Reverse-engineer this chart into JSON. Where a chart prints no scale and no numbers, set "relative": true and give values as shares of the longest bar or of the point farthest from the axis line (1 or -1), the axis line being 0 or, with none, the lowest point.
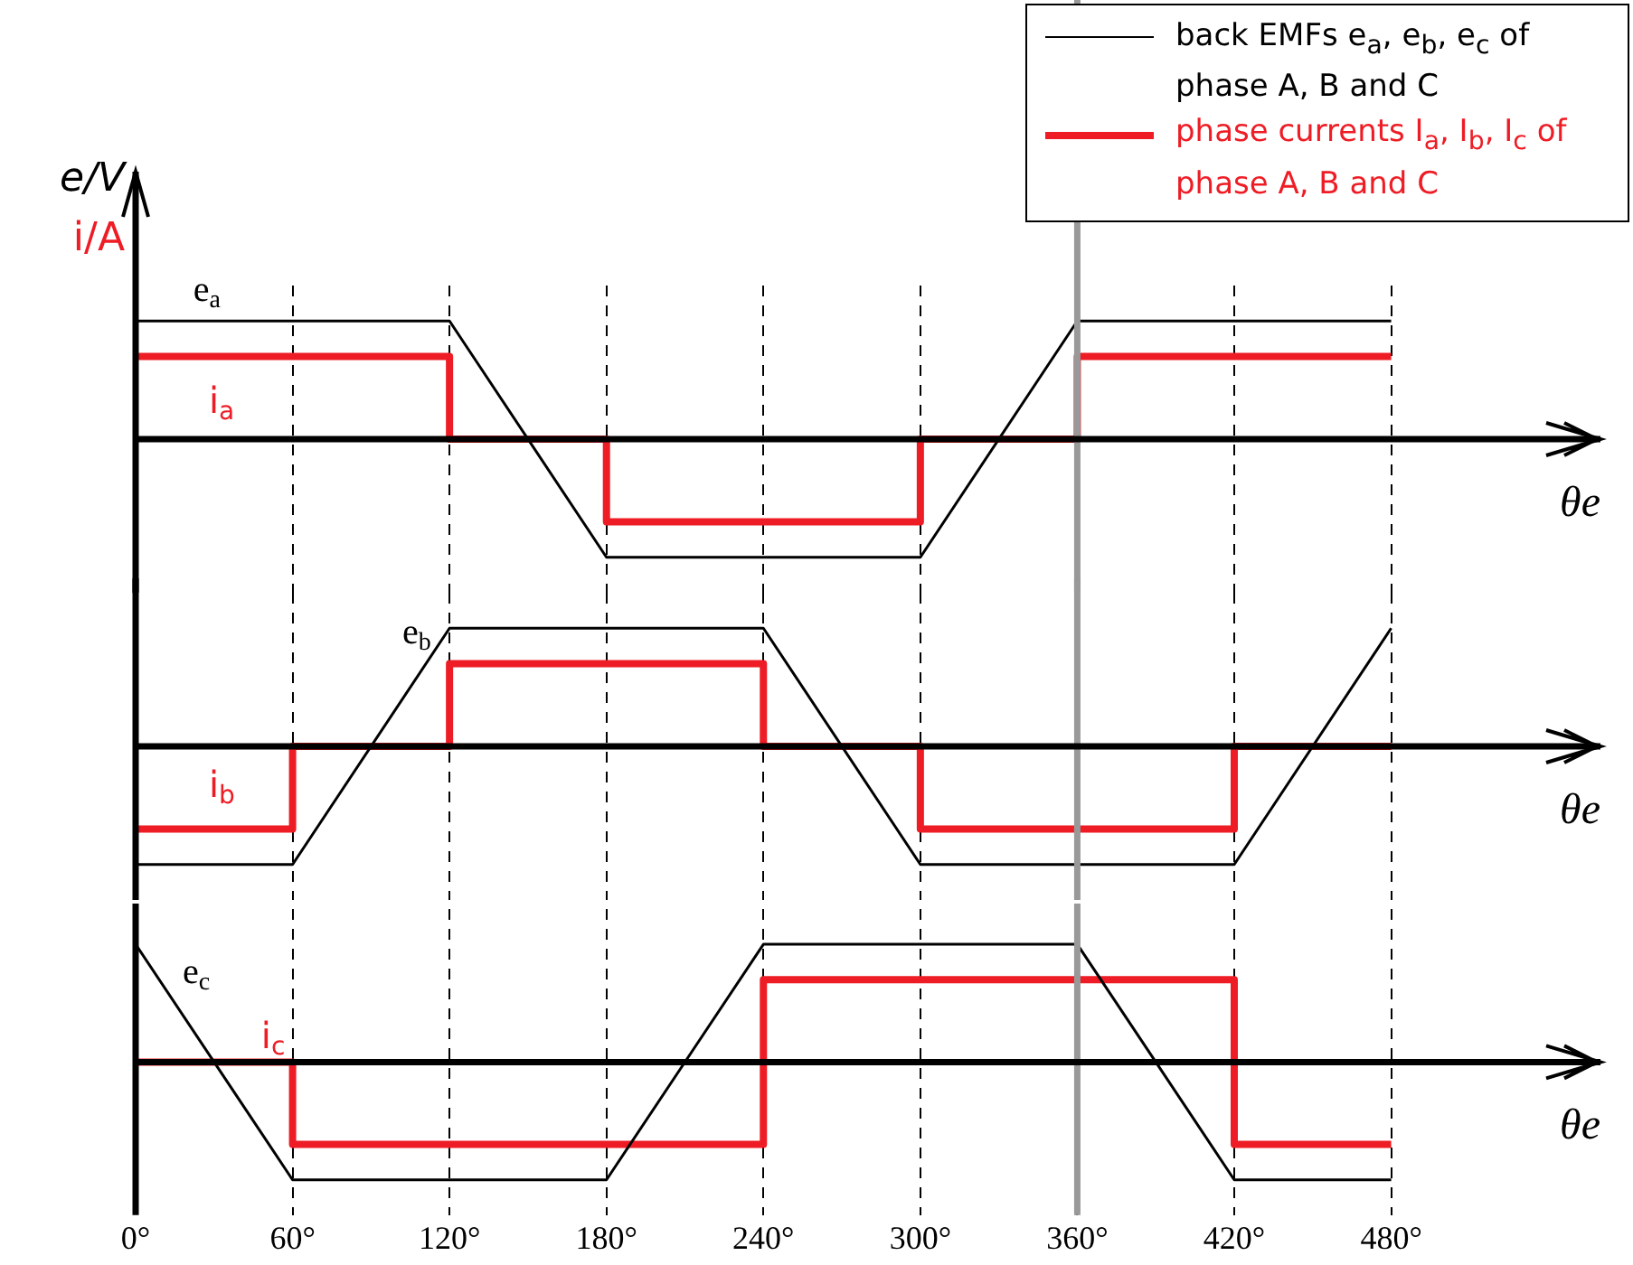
{
  "chart_data": [
    {
      "type": "line",
      "relative": true,
      "ylabel": "e/V",
      "xlabel": "θe",
      "grid": "x",
      "tick_labels": false,
      "line_style": "solid",
      "marker": "none",
      "xlim": [
        0,
        560
      ],
      "xticks": [
        {
          "value": 0,
          "label": null
        },
        {
          "value": 60,
          "label": null
        },
        {
          "value": 120,
          "label": null
        },
        {
          "value": 180,
          "label": null
        },
        {
          "value": 240,
          "label": null
        },
        {
          "value": 300,
          "label": null
        },
        {
          "value": 360,
          "label": null
        },
        {
          "value": 420,
          "label": null
        },
        {
          "value": 480,
          "label": null
        }
      ],
      "ref_lines": [
        {
          "axis": "x",
          "value": 360,
          "color": "#999999"
        }
      ],
      "annotations": [
        "i/A",
        "back EMFs e$_{a}$, e$_{b}$, e$_{c}$ of phase A, B and C",
        "phase currents I$_{a}$, I$_{b}$, I$_{c}$ of phase A, B and C"
      ],
      "series": [
        {
          "type": "line",
          "name": "e$_{a}$",
          "color": "#000000",
          "x": [
            0,
            120,
            180,
            300,
            360,
            480
          ],
          "values": [
            1,
            1,
            -1,
            -1,
            1,
            1
          ]
        },
        {
          "type": "step",
          "name": "i$_{a}$",
          "color": "#ee1c25",
          "x": [
            0,
            120,
            180,
            300,
            360,
            480
          ],
          "values": [
            0.7,
            0,
            -0.7,
            0,
            0.7,
            0.7
          ]
        }
      ]
    },
    {
      "type": "line",
      "relative": true,
      "xlabel": "θe",
      "grid": "x",
      "tick_labels": false,
      "line_style": "solid",
      "marker": "none",
      "xlim": [
        0,
        560
      ],
      "xticks": [
        {
          "value": 0,
          "label": null
        },
        {
          "value": 60,
          "label": null
        },
        {
          "value": 120,
          "label": null
        },
        {
          "value": 180,
          "label": null
        },
        {
          "value": 240,
          "label": null
        },
        {
          "value": 300,
          "label": null
        },
        {
          "value": 360,
          "label": null
        },
        {
          "value": 420,
          "label": null
        },
        {
          "value": 480,
          "label": null
        }
      ],
      "ref_lines": [
        {
          "axis": "x",
          "value": 360,
          "color": "#999999"
        }
      ],
      "series": [
        {
          "type": "line",
          "name": "e$_{b}$",
          "color": "#000000",
          "x": [
            0,
            60,
            120,
            240,
            300,
            420,
            480
          ],
          "values": [
            -1,
            -1,
            1,
            1,
            -1,
            -1,
            1
          ]
        },
        {
          "type": "step",
          "name": "i$_{b}$",
          "color": "#ee1c25",
          "x": [
            0,
            60,
            120,
            240,
            300,
            420,
            480
          ],
          "values": [
            -0.7,
            0,
            0.7,
            0,
            -0.7,
            0,
            0
          ]
        }
      ]
    },
    {
      "type": "line",
      "relative": true,
      "xlabel": "θe",
      "grid": "x",
      "tick_labels": "x",
      "line_style": "solid",
      "marker": "none",
      "xlim": [
        0,
        560
      ],
      "xticks": [
        {
          "value": 0,
          "label": "0°"
        },
        {
          "value": 60,
          "label": "60°"
        },
        {
          "value": 120,
          "label": "120°"
        },
        {
          "value": 180,
          "label": "180°"
        },
        {
          "value": 240,
          "label": "240°"
        },
        {
          "value": 300,
          "label": "300°"
        },
        {
          "value": 360,
          "label": "360°"
        },
        {
          "value": 420,
          "label": "420°"
        },
        {
          "value": 480,
          "label": "480°"
        }
      ],
      "ref_lines": [
        {
          "axis": "x",
          "value": 360,
          "color": "#999999"
        }
      ],
      "series": [
        {
          "type": "line",
          "name": "e$_{c}$",
          "color": "#000000",
          "x": [
            0,
            60,
            180,
            240,
            360,
            420,
            480
          ],
          "values": [
            1,
            -1,
            -1,
            1,
            1,
            -1,
            -1
          ]
        },
        {
          "type": "step",
          "name": "i$_{c}$",
          "color": "#ee1c25",
          "x": [
            0,
            60,
            180,
            240,
            360,
            420,
            480
          ],
          "values": [
            0,
            -0.7,
            -0.7,
            0.7,
            0.7,
            -0.7,
            -0.7
          ]
        }
      ]
    }
  ]
}
